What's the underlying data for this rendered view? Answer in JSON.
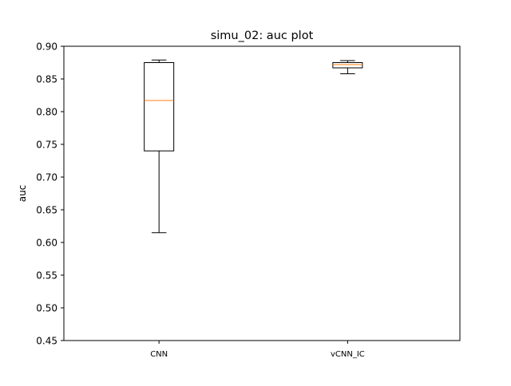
{
  "chart_data": {
    "type": "box",
    "title": "simu_02:  auc plot",
    "xlabel": "",
    "ylabel": "auc",
    "ylim": [
      0.45,
      0.9
    ],
    "yticks": [
      0.45,
      0.5,
      0.55,
      0.6,
      0.65,
      0.7,
      0.75,
      0.8,
      0.85,
      0.9
    ],
    "ytick_labels": [
      "0.45",
      "0.50",
      "0.55",
      "0.60",
      "0.65",
      "0.70",
      "0.75",
      "0.80",
      "0.85",
      "0.90"
    ],
    "categories": [
      "CNN",
      "vCNN_IC"
    ],
    "boxes": [
      {
        "category": "CNN",
        "whisker_low": 0.615,
        "q1": 0.74,
        "median": 0.817,
        "q3": 0.875,
        "whisker_high": 0.879
      },
      {
        "category": "vCNN_IC",
        "whisker_low": 0.858,
        "q1": 0.867,
        "median": 0.872,
        "q3": 0.875,
        "whisker_high": 0.878
      }
    ],
    "grid": false,
    "colors": {
      "box": "#000000",
      "median": "#ff7f0e",
      "axes": "#000000"
    }
  }
}
